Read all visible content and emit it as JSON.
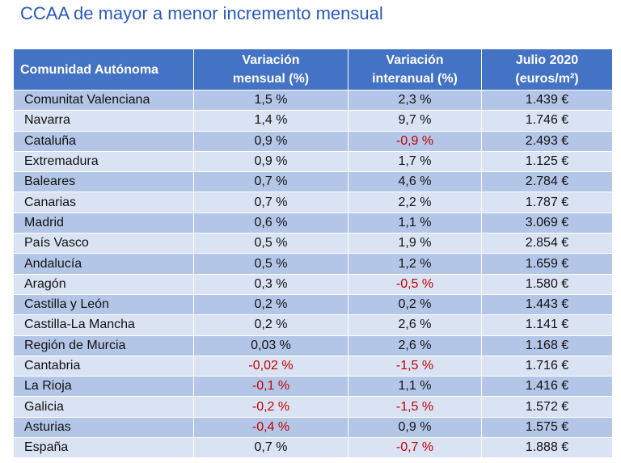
{
  "title": "CCAA de mayor a menor incremento mensual",
  "headers": {
    "col1": "Comunidad Autónoma",
    "col2_line1": "Variación",
    "col2_line2": "mensual (%)",
    "col3_line1": "Variación",
    "col3_line2": "interanual (%)",
    "col4_line1": "Julio 2020",
    "col4_line2": "(euros/m²)"
  },
  "rows": [
    {
      "region": "Comunitat Valenciana",
      "monthly": "1,5 %",
      "annual": "2,3 %",
      "price": "1.439 €",
      "monthly_neg": false,
      "annual_neg": false
    },
    {
      "region": "Navarra",
      "monthly": "1,4 %",
      "annual": "9,7 %",
      "price": "1.746 €",
      "monthly_neg": false,
      "annual_neg": false
    },
    {
      "region": "Cataluña",
      "monthly": "0,9 %",
      "annual": "-0,9 %",
      "price": "2.493 €",
      "monthly_neg": false,
      "annual_neg": true
    },
    {
      "region": "Extremadura",
      "monthly": "0,9 %",
      "annual": "1,7 %",
      "price": "1.125 €",
      "monthly_neg": false,
      "annual_neg": false
    },
    {
      "region": "Baleares",
      "monthly": "0,7 %",
      "annual": "4,6 %",
      "price": "2.784 €",
      "monthly_neg": false,
      "annual_neg": false
    },
    {
      "region": "Canarias",
      "monthly": "0,7 %",
      "annual": "2,2 %",
      "price": "1.787 €",
      "monthly_neg": false,
      "annual_neg": false
    },
    {
      "region": "Madrid",
      "monthly": "0,6 %",
      "annual": "1,1 %",
      "price": "3.069 €",
      "monthly_neg": false,
      "annual_neg": false
    },
    {
      "region": "País Vasco",
      "monthly": "0,5 %",
      "annual": "1,9 %",
      "price": "2.854 €",
      "monthly_neg": false,
      "annual_neg": false
    },
    {
      "region": "Andalucía",
      "monthly": "0,5 %",
      "annual": "1,2 %",
      "price": "1.659 €",
      "monthly_neg": false,
      "annual_neg": false
    },
    {
      "region": "Aragón",
      "monthly": "0,3 %",
      "annual": "-0,5 %",
      "price": "1.580 €",
      "monthly_neg": false,
      "annual_neg": true
    },
    {
      "region": "Castilla y León",
      "monthly": "0,2 %",
      "annual": "0,2 %",
      "price": "1.443 €",
      "monthly_neg": false,
      "annual_neg": false
    },
    {
      "region": "Castilla-La Mancha",
      "monthly": "0,2 %",
      "annual": "2,6 %",
      "price": "1.141 €",
      "monthly_neg": false,
      "annual_neg": false
    },
    {
      "region": "Región de Murcia",
      "monthly": "0,03 %",
      "annual": "2,6 %",
      "price": "1.168 €",
      "monthly_neg": false,
      "annual_neg": false
    },
    {
      "region": "Cantabria",
      "monthly": "-0,02 %",
      "annual": "-1,5 %",
      "price": "1.716 €",
      "monthly_neg": true,
      "annual_neg": true
    },
    {
      "region": "La Rioja",
      "monthly": "-0,1 %",
      "annual": "1,1 %",
      "price": "1.416 €",
      "monthly_neg": true,
      "annual_neg": false
    },
    {
      "region": "Galicia",
      "monthly": "-0,2 %",
      "annual": "-1,5 %",
      "price": "1.572 €",
      "monthly_neg": true,
      "annual_neg": true
    },
    {
      "region": "Asturias",
      "monthly": "-0,4 %",
      "annual": "0,9 %",
      "price": "1.575 €",
      "monthly_neg": true,
      "annual_neg": false
    },
    {
      "region": "España",
      "monthly": "0,7 %",
      "annual": "-0,7 %",
      "price": "1.888 €",
      "monthly_neg": false,
      "annual_neg": true
    }
  ],
  "colors": {
    "title": "#2a59b8",
    "header_bg": "#4472c4",
    "row_dark": "#b4c6e7",
    "row_light": "#dae3f3",
    "negative": "#c00000"
  }
}
